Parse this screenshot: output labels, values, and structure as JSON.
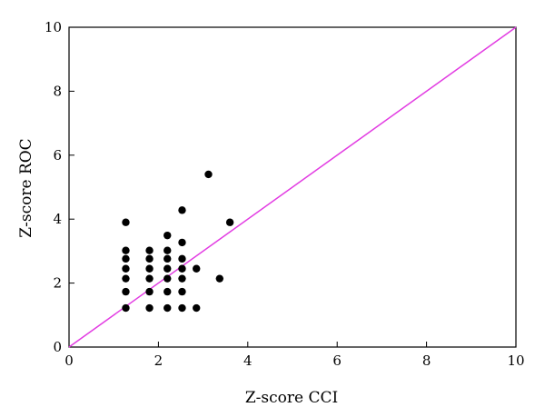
{
  "chart_data": {
    "type": "scatter",
    "title": "",
    "xlabel": "Z-score CCI",
    "ylabel": "Z-score ROC",
    "xlim": [
      0,
      10
    ],
    "ylim": [
      0,
      10
    ],
    "x_ticks": [
      "0",
      "2",
      "4",
      "6",
      "8",
      "10"
    ],
    "y_ticks": [
      "0",
      "2",
      "4",
      "6",
      "8",
      "10"
    ],
    "grid": false,
    "legend": "none",
    "series": [
      {
        "color": "#000000",
        "marker": "filled-circle",
        "points": [
          [
            1.27,
            1.22
          ],
          [
            1.27,
            1.73
          ],
          [
            1.27,
            2.14
          ],
          [
            1.27,
            2.45
          ],
          [
            1.27,
            2.76
          ],
          [
            1.27,
            3.02
          ],
          [
            1.27,
            3.9
          ],
          [
            1.8,
            1.22
          ],
          [
            1.8,
            1.73
          ],
          [
            1.8,
            2.14
          ],
          [
            1.8,
            2.45
          ],
          [
            1.8,
            2.76
          ],
          [
            1.8,
            3.02
          ],
          [
            2.2,
            1.22
          ],
          [
            2.2,
            1.73
          ],
          [
            2.2,
            2.14
          ],
          [
            2.2,
            2.45
          ],
          [
            2.2,
            2.76
          ],
          [
            2.2,
            3.02
          ],
          [
            2.2,
            3.49
          ],
          [
            2.53,
            1.22
          ],
          [
            2.53,
            1.73
          ],
          [
            2.53,
            2.14
          ],
          [
            2.53,
            2.45
          ],
          [
            2.53,
            2.76
          ],
          [
            2.53,
            3.27
          ],
          [
            2.53,
            4.28
          ],
          [
            2.85,
            1.22
          ],
          [
            2.85,
            2.45
          ],
          [
            3.12,
            5.4
          ],
          [
            3.37,
            2.14
          ],
          [
            3.6,
            3.9
          ]
        ]
      }
    ],
    "reference_line": {
      "from": [
        0,
        0
      ],
      "to": [
        10,
        10
      ],
      "color": "#e23ce2"
    }
  }
}
